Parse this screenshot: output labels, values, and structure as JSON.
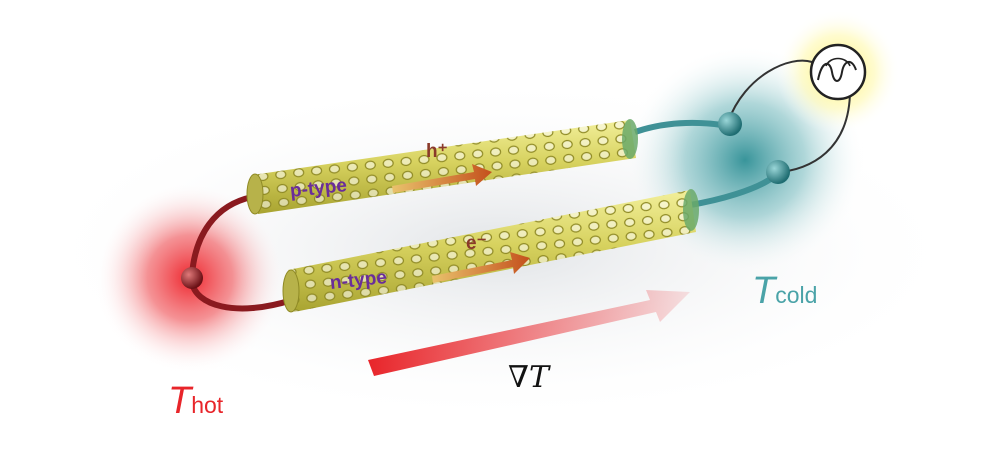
{
  "labels": {
    "t_hot_symbol": "T",
    "t_hot_sub": "hot",
    "t_cold_symbol": "T",
    "t_cold_sub": "cold",
    "gradient_nabla": "∇",
    "gradient_T": "T",
    "p_type": "p-type",
    "n_type": "n-type",
    "hole": "h⁺",
    "electron": "e⁻"
  },
  "colors": {
    "hot": "#e8252a",
    "cold": "#4aa3a8",
    "tube": "#d9d56a",
    "wire_hot": "#8a1a1f",
    "wire_cold": "#3f9196",
    "text_type": "#6a2d9a"
  },
  "icons": [
    "voltmeter-icon",
    "node-sphere-icon"
  ]
}
